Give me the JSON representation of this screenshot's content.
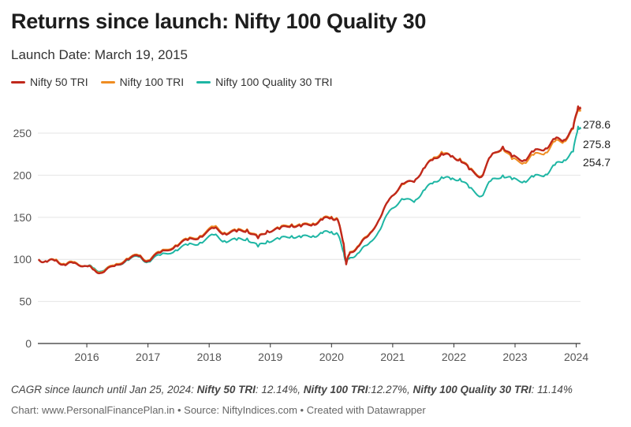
{
  "header": {
    "title": "Returns since launch: Nifty 100 Quality 30",
    "subtitle": "Launch Date: March 19, 2015"
  },
  "colors": {
    "nifty50": "#c0281b",
    "nifty100": "#ef8d22",
    "quality30": "#1eb6a4",
    "grid": "#e4e4e4",
    "axis": "#333333"
  },
  "footer": {
    "cagr_prefix": "CAGR since launch until Jan 25, 2024: ",
    "cagr_items": [
      {
        "name": "Nifty 50 TRI",
        "value": ": 12.14%, "
      },
      {
        "name": "Nifty 100 TRI",
        "value": ":12.27%, "
      },
      {
        "name": "Nifty 100 Quality 30 TRI",
        "value": ": 11.14%"
      }
    ],
    "source": "Chart: www.PersonalFinancePlan.in • Source: NiftyIndices.com • Created with Datawrapper"
  },
  "chart_data": {
    "type": "line",
    "title": "Returns since launch: Nifty 100 Quality 30",
    "subtitle": "Launch Date: March 19, 2015",
    "xlabel": "",
    "ylabel": "",
    "xlim": [
      2015.2,
      2024.07
    ],
    "ylim": [
      0,
      280
    ],
    "yticks": [
      0,
      50,
      100,
      150,
      200,
      250
    ],
    "xticks": [
      "2016",
      "2017",
      "2018",
      "2019",
      "2020",
      "2021",
      "2022",
      "2023",
      "2024"
    ],
    "legend": "top-left",
    "grid": true,
    "x": [
      2015.21,
      2015.35,
      2015.5,
      2015.65,
      2015.8,
      2016.0,
      2016.1,
      2016.25,
      2016.45,
      2016.65,
      2016.85,
      2017.0,
      2017.2,
      2017.45,
      2017.65,
      2017.85,
      2018.08,
      2018.25,
      2018.45,
      2018.62,
      2018.8,
      2018.95,
      2019.15,
      2019.35,
      2019.5,
      2019.7,
      2019.85,
      2020.0,
      2020.1,
      2020.2,
      2020.24,
      2020.3,
      2020.45,
      2020.6,
      2020.8,
      2020.95,
      2021.15,
      2021.35,
      2021.5,
      2021.65,
      2021.8,
      2021.95,
      2022.1,
      2022.25,
      2022.45,
      2022.6,
      2022.8,
      2022.95,
      2023.15,
      2023.3,
      2023.5,
      2023.65,
      2023.8,
      2023.95,
      2024.03,
      2024.07
    ],
    "series": [
      {
        "name": "Nifty 50 TRI",
        "end_label": "278.6",
        "values": [
          100,
          97,
          99,
          93,
          96,
          92,
          88,
          84,
          92,
          100,
          104,
          98,
          108,
          116,
          123,
          127,
          137,
          131,
          133,
          135,
          125,
          134,
          136,
          141,
          139,
          142,
          147,
          150,
          147,
          118,
          94,
          108,
          116,
          128,
          150,
          172,
          190,
          192,
          208,
          218,
          226,
          222,
          219,
          207,
          198,
          222,
          234,
          222,
          218,
          228,
          232,
          243,
          242,
          256,
          282,
          278.6
        ]
      },
      {
        "name": "Nifty 100 TRI",
        "end_label": "275.8",
        "values": [
          100,
          97,
          100,
          94,
          97,
          92,
          89,
          85,
          93,
          101,
          105,
          99,
          109,
          117,
          124,
          128,
          139,
          132,
          134,
          136,
          126,
          134,
          137,
          142,
          140,
          143,
          148,
          151,
          148,
          119,
          95,
          109,
          117,
          129,
          150,
          172,
          189,
          192,
          208,
          219,
          228,
          222,
          220,
          208,
          199,
          222,
          233,
          219,
          215,
          224,
          227,
          240,
          240,
          255,
          280,
          275.8
        ]
      },
      {
        "name": "Nifty 100 Quality 30 TRI",
        "end_label": "254.7",
        "values": [
          100,
          97,
          99,
          93,
          96,
          92,
          90,
          86,
          92,
          99,
          103,
          97,
          105,
          111,
          117,
          120,
          129,
          122,
          123,
          125,
          115,
          122,
          124,
          128,
          126,
          128,
          131,
          133,
          130,
          108,
          95,
          102,
          108,
          118,
          136,
          158,
          172,
          168,
          182,
          190,
          198,
          195,
          196,
          185,
          175,
          193,
          200,
          195,
          193,
          198,
          201,
          212,
          218,
          228,
          258,
          254.7
        ]
      }
    ]
  }
}
